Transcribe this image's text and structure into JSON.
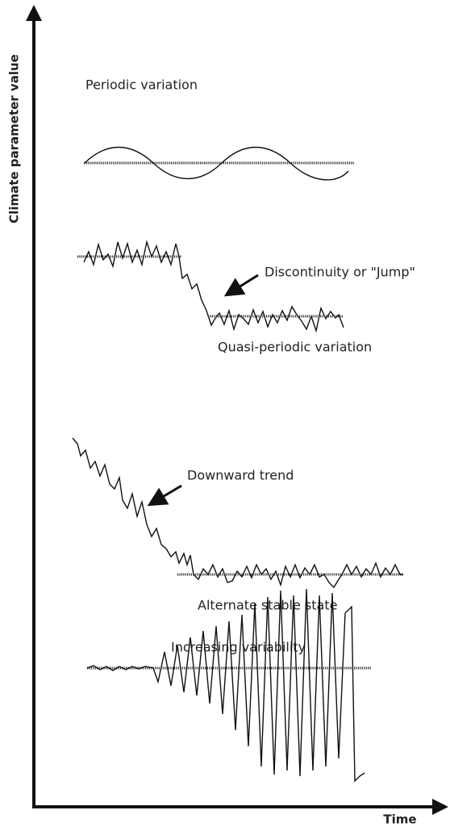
{
  "axes": {
    "y_label": "Climate parameter value",
    "x_label": "Time"
  },
  "panels": [
    {
      "label": "Periodic variation"
    },
    {
      "label": "Discontinuity or \"Jump\""
    },
    {
      "label": "Quasi-periodic variation"
    },
    {
      "label": "Downward trend"
    },
    {
      "label": "Alternate stable state"
    },
    {
      "label": "Increasing variability"
    }
  ]
}
